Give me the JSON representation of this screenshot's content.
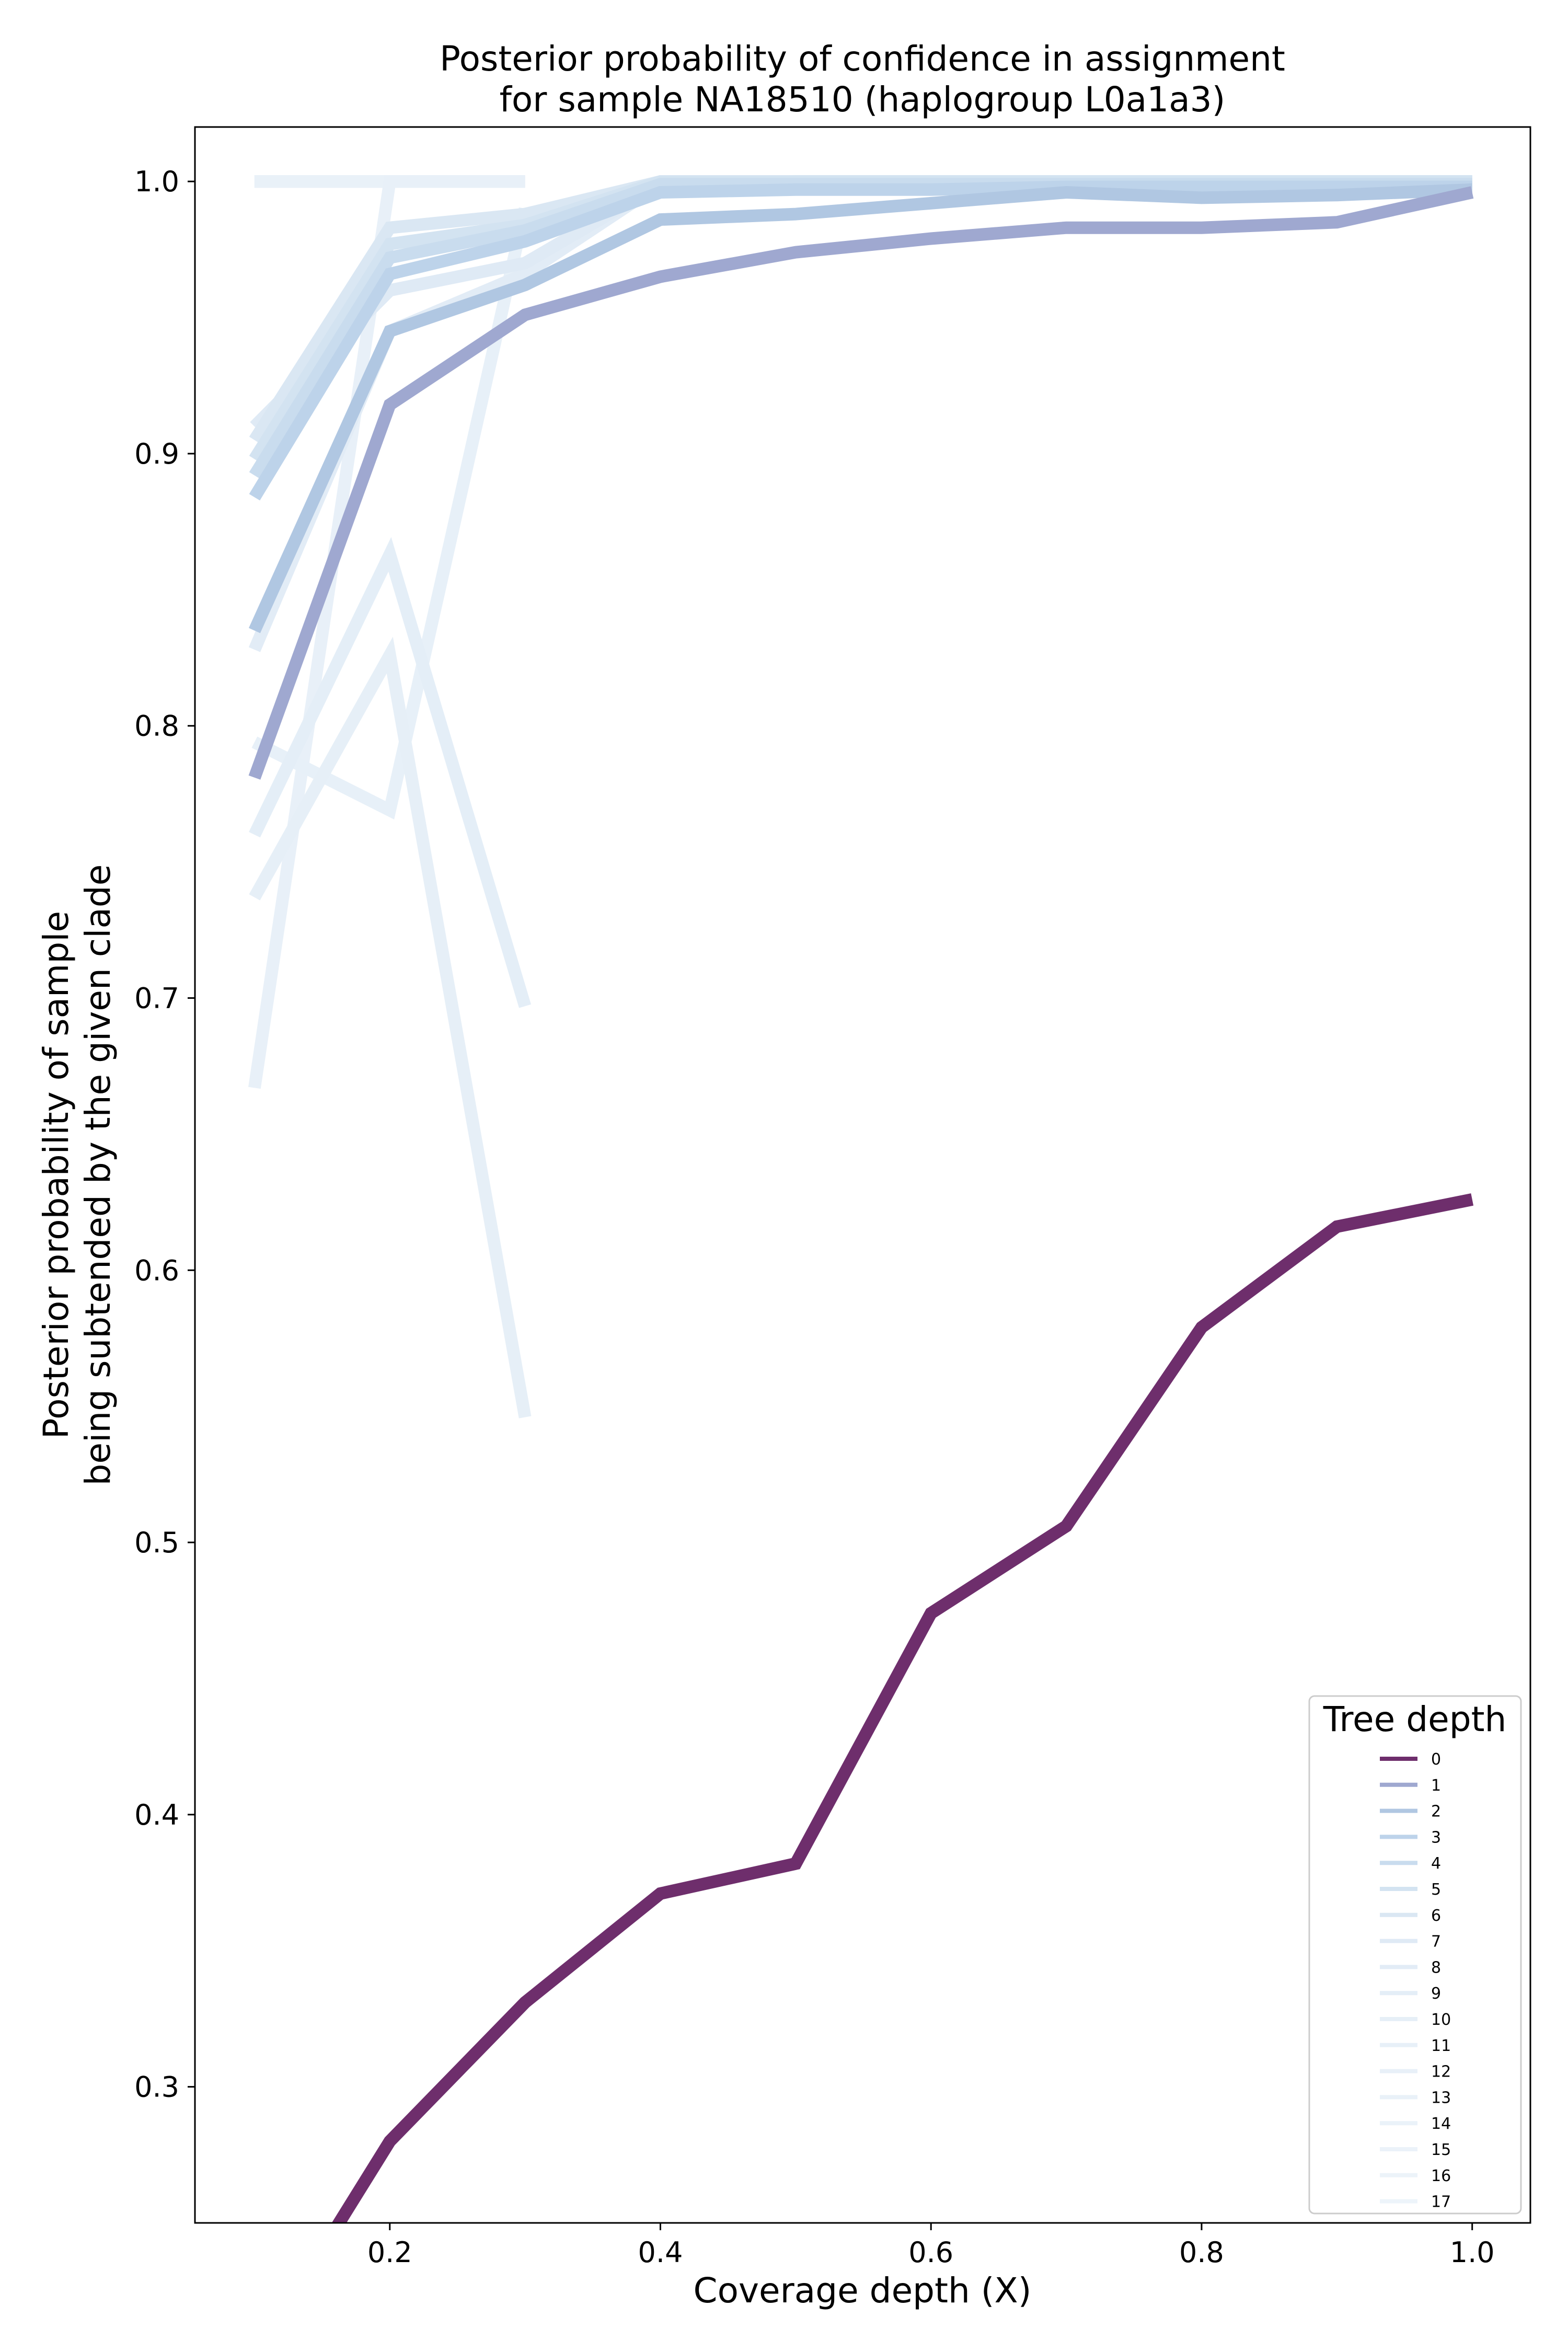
{
  "chart_data": {
    "type": "line",
    "title_line1": "Posterior probability of confidence in assignment",
    "title_line2": "for sample NA18510 (haplogroup L0a1a3)",
    "xlabel": "Coverage depth (X)",
    "ylabel_line1": "Posterior probability of sample",
    "ylabel_line2": "being subtended by the given clade",
    "xlim": [
      0.056,
      1.043
    ],
    "ylim": [
      0.25,
      1.02
    ],
    "xticks": [
      {
        "value": 0.2,
        "label": "0.2"
      },
      {
        "value": 0.4,
        "label": "0.4"
      },
      {
        "value": 0.6,
        "label": "0.6"
      },
      {
        "value": 0.8,
        "label": "0.8"
      },
      {
        "value": 1.0,
        "label": "1.0"
      }
    ],
    "yticks": [
      {
        "value": 0.3,
        "label": "0.3"
      },
      {
        "value": 0.4,
        "label": "0.4"
      },
      {
        "value": 0.5,
        "label": "0.5"
      },
      {
        "value": 0.6,
        "label": "0.6"
      },
      {
        "value": 0.7,
        "label": "0.7"
      },
      {
        "value": 0.8,
        "label": "0.8"
      },
      {
        "value": 0.9,
        "label": "0.9"
      },
      {
        "value": 1.0,
        "label": "1.0"
      }
    ],
    "grid": false,
    "legend": {
      "title": "Tree depth",
      "placement": "lower-right"
    },
    "series": [
      {
        "name": "0",
        "color": "#6e2e6c",
        "x": [
          0.1,
          0.2,
          0.3,
          0.4,
          0.5,
          0.6,
          0.7,
          0.8,
          0.9,
          1.0
        ],
        "y": [
          0.2,
          0.28,
          0.331,
          0.371,
          0.382,
          0.474,
          0.506,
          0.579,
          0.616,
          0.626
        ]
      },
      {
        "name": "1",
        "color": "#9fa8d0",
        "x": [
          0.1,
          0.2,
          0.3,
          0.4,
          0.5,
          0.6,
          0.7,
          0.8,
          0.9,
          1.0
        ],
        "y": [
          0.781,
          0.918,
          0.951,
          0.965,
          0.974,
          0.979,
          0.983,
          0.983,
          0.985,
          0.996
        ]
      },
      {
        "name": "2",
        "color": "#b0c7e2",
        "x": [
          0.1,
          0.2,
          0.3,
          0.4,
          0.5,
          0.6,
          0.7,
          0.8,
          0.9,
          1.0
        ],
        "y": [
          0.835,
          0.945,
          0.962,
          0.986,
          0.988,
          0.992,
          0.996,
          0.994,
          0.995,
          0.997
        ]
      },
      {
        "name": "3",
        "color": "#bdd3ea",
        "x": [
          0.1,
          0.2,
          0.3,
          0.4,
          0.5,
          0.6,
          0.7,
          0.8,
          0.9,
          1.0
        ],
        "y": [
          0.884,
          0.966,
          0.978,
          0.996,
          0.997,
          0.997,
          0.998,
          0.998,
          0.998,
          0.998
        ]
      },
      {
        "name": "4",
        "color": "#c9dcee",
        "x": [
          0.1,
          0.2,
          0.3,
          0.4,
          0.5,
          0.6,
          0.7,
          0.8,
          0.9,
          1.0
        ],
        "y": [
          0.892,
          0.972,
          0.982,
          0.999,
          0.999,
          0.999,
          0.999,
          0.999,
          0.999,
          0.999
        ]
      },
      {
        "name": "5",
        "color": "#d3e3f1",
        "x": [
          0.1,
          0.2,
          0.3,
          0.4,
          0.5,
          0.6,
          0.7,
          0.8,
          0.9,
          1.0
        ],
        "y": [
          0.898,
          0.977,
          0.984,
          1.0,
          1.0,
          1.0,
          1.0,
          1.0,
          1.0,
          1.0
        ]
      },
      {
        "name": "6",
        "color": "#dae7f3",
        "x": [
          0.1,
          0.2,
          0.3,
          0.4,
          0.5,
          0.6,
          0.7,
          0.8,
          0.9,
          1.0
        ],
        "y": [
          0.905,
          0.983,
          0.988,
          1.0,
          1.0,
          1.0,
          1.0,
          1.0,
          1.0,
          1.0
        ]
      },
      {
        "name": "7",
        "color": "#dfeaf5",
        "x": [
          0.1,
          0.2,
          0.3,
          0.4,
          0.5,
          0.6,
          0.7,
          0.8,
          0.9,
          1.0
        ],
        "y": [
          0.91,
          0.96,
          0.97,
          0.999,
          1.0,
          1.0,
          1.0,
          1.0,
          1.0,
          1.0
        ]
      },
      {
        "name": "8",
        "color": "#e2ecf6",
        "x": [
          0.1,
          0.2,
          0.3,
          0.4,
          0.5,
          0.6,
          0.7,
          0.8,
          0.9,
          1.0
        ],
        "y": [
          0.828,
          0.945,
          0.966,
          0.999,
          1.0,
          1.0,
          1.0,
          1.0,
          1.0,
          1.0
        ]
      },
      {
        "name": "9",
        "color": "#e4eef7",
        "x": [
          0.1,
          0.2,
          0.3
        ],
        "y": [
          0.76,
          0.863,
          0.697
        ]
      },
      {
        "name": "10",
        "color": "#e6eff7",
        "x": [
          0.1,
          0.2,
          0.3
        ],
        "y": [
          0.737,
          0.826,
          0.546
        ]
      },
      {
        "name": "11",
        "color": "#e7f0f8",
        "x": [
          0.1,
          0.2,
          0.3
        ],
        "y": [
          0.794,
          0.769,
          0.99
        ]
      },
      {
        "name": "12",
        "color": "#e8f0f8",
        "x": [
          0.1,
          0.2,
          0.3
        ],
        "y": [
          0.667,
          1.0,
          1.0
        ]
      },
      {
        "name": "13",
        "color": "#e9f1f8",
        "x": [
          0.1,
          0.2,
          0.3
        ],
        "y": [
          1.0,
          1.0,
          1.0
        ]
      },
      {
        "name": "14",
        "color": "#eaf2f9",
        "x": [
          0.1,
          0.2,
          0.3
        ],
        "y": [
          1.0,
          1.0,
          1.0
        ]
      },
      {
        "name": "15",
        "color": "#ebf2f9",
        "x": [
          0.1,
          0.2,
          0.3
        ],
        "y": [
          1.0,
          1.0,
          1.0
        ]
      },
      {
        "name": "16",
        "color": "#ecf3f9",
        "x": [
          0.1,
          0.2,
          0.3
        ],
        "y": [
          1.0,
          1.0,
          1.0
        ]
      },
      {
        "name": "17",
        "color": "#edf4fa",
        "x": [
          0.1,
          0.2,
          0.3
        ],
        "y": [
          1.0,
          1.0,
          1.0
        ]
      }
    ]
  }
}
